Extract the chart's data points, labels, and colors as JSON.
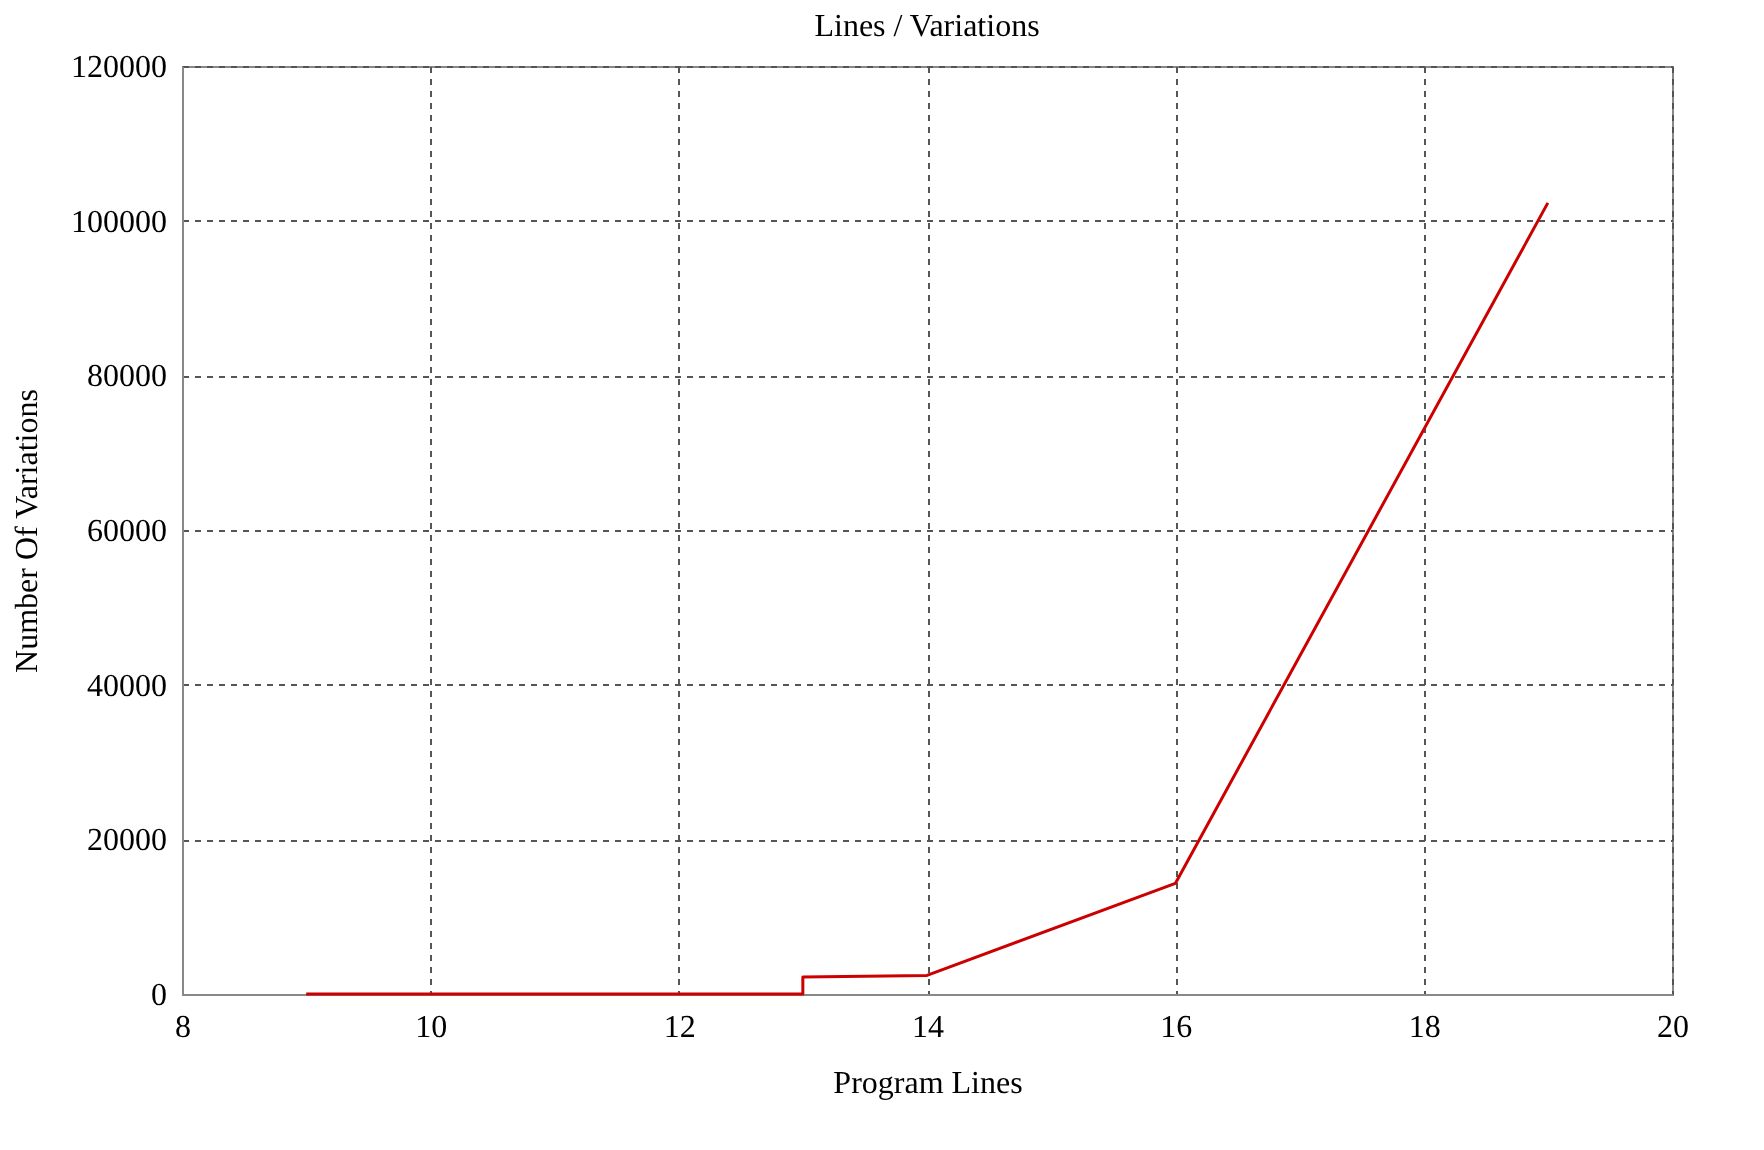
{
  "chart_data": {
    "type": "line",
    "title": "Lines / Variations",
    "xlabel": "Program Lines",
    "ylabel": "Number Of Variations",
    "x": [
      9,
      10,
      11,
      12,
      13,
      13,
      14,
      16,
      19
    ],
    "series": [
      {
        "color": "#cc0000",
        "values": [
          0,
          0,
          0,
          0,
          0,
          2200,
          2400,
          14300,
          102300
        ]
      }
    ],
    "xlim": [
      8,
      20
    ],
    "xticks": [
      8,
      10,
      12,
      14,
      16,
      18,
      20
    ],
    "ylim": [
      0,
      120000
    ],
    "yticks": [
      0,
      20000,
      40000,
      60000,
      80000,
      100000,
      120000
    ],
    "grid": true,
    "marker": "none",
    "line_style": "solid"
  }
}
